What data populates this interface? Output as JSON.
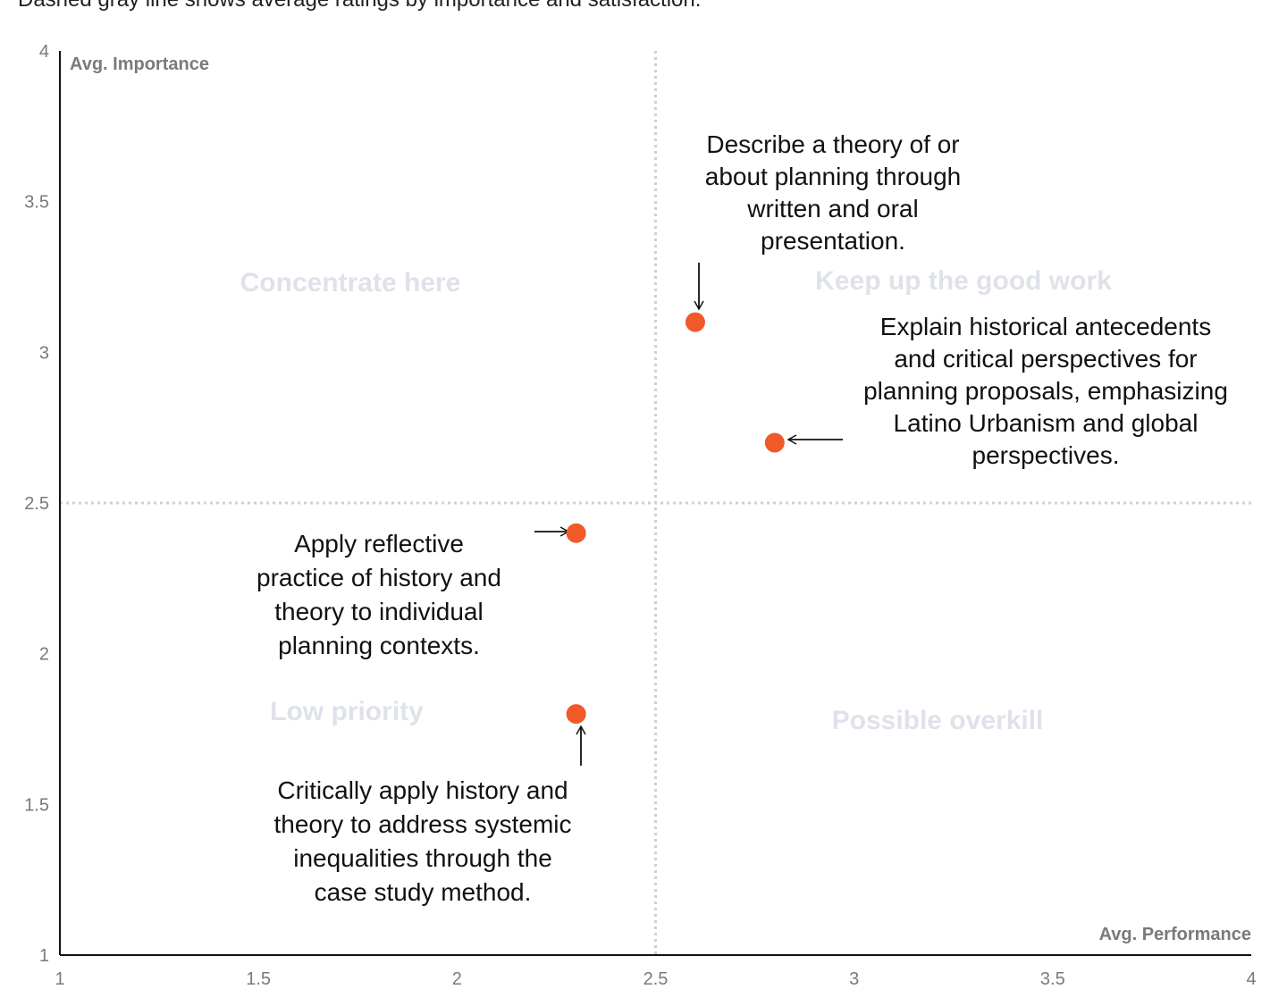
{
  "subtitle": "Dashed gray line shows average ratings by importance and satisfaction.",
  "chart_data": {
    "type": "scatter",
    "xlabel": "Avg. Performance",
    "ylabel": "Avg. Importance",
    "xlim": [
      1,
      4
    ],
    "ylim": [
      1,
      4
    ],
    "x_ticks": [
      "1",
      "1.5",
      "2",
      "2.5",
      "3",
      "3.5",
      "4"
    ],
    "y_ticks": [
      "1",
      "1.5",
      "2",
      "2.5",
      "3",
      "3.5",
      "4"
    ],
    "reference_lines": {
      "x": 2.5,
      "y": 2.5,
      "style": "dashed",
      "color": "#d0d0d0"
    },
    "quadrant_labels": [
      "Concentrate here",
      "Keep up the good work",
      "Low priority",
      "Possible overkill"
    ],
    "point_color": "#f0592a",
    "grid": false,
    "points": [
      {
        "x": 2.6,
        "y": 3.1,
        "label": [
          "Describe a theory of or",
          "about planning through",
          "written and oral",
          "presentation."
        ]
      },
      {
        "x": 2.8,
        "y": 2.7,
        "label": [
          "Explain historical antecedents",
          "and critical perspectives for",
          "planning proposals, emphasizing",
          "Latino Urbanism and global",
          "perspectives."
        ]
      },
      {
        "x": 2.3,
        "y": 2.4,
        "label": [
          "Apply reflective",
          "practice of history and",
          "theory to individual",
          "planning contexts."
        ]
      },
      {
        "x": 2.3,
        "y": 1.8,
        "label": [
          "Critically apply history and",
          "theory to address systemic",
          "inequalities through the",
          "case study method."
        ]
      }
    ]
  }
}
